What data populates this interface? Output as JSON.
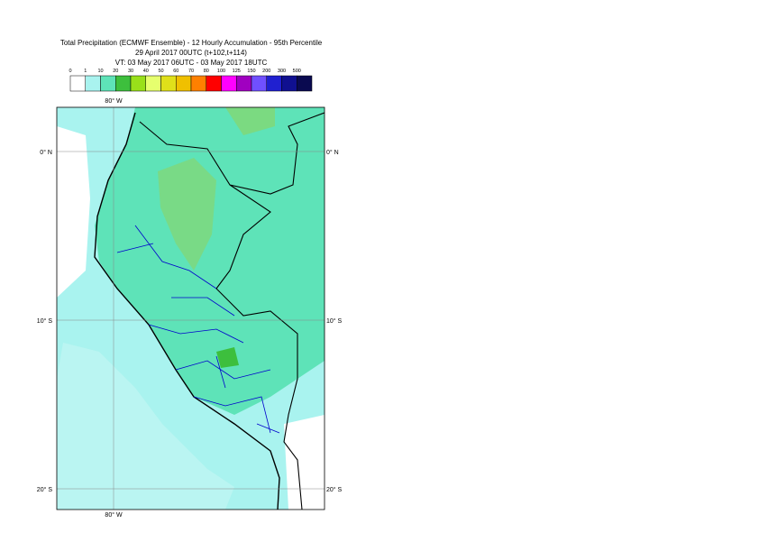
{
  "header": {
    "title": "Total Precipitation (ECMWF Ensemble) - 12 Hourly Accumulation - 95th Percentile",
    "run": "29 April 2017 00UTC (t+102,t+114)",
    "valid": "VT: 03 May 2017 06UTC - 03 May 2017 18UTC"
  },
  "legend": {
    "labels": [
      "0",
      "1",
      "10",
      "20",
      "30",
      "40",
      "50",
      "60",
      "70",
      "80",
      "100",
      "125",
      "150",
      "200",
      "300",
      "500"
    ],
    "colors": [
      "#ffffff",
      "#a9f3ef",
      "#5ee3b8",
      "#3dbf3d",
      "#99e01a",
      "#e6ff6e",
      "#e0e01a",
      "#f0c000",
      "#ff8000",
      "#ff0000",
      "#ff00ff",
      "#a000c0",
      "#7050ff",
      "#2020d0",
      "#101090",
      "#0a0a50"
    ]
  },
  "map": {
    "lon_labels": [
      "80° W",
      "80° W"
    ],
    "lat_labels": [
      "0° N",
      "10° S",
      "20° S"
    ]
  }
}
